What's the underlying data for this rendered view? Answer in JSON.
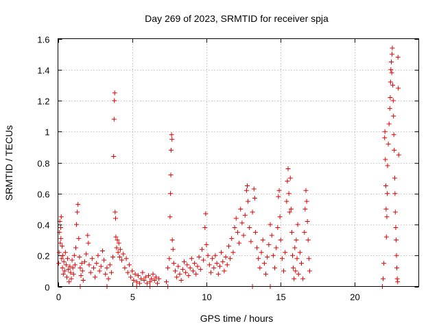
{
  "chart_data": {
    "type": "scatter",
    "title": "Day 269 of 2023, SRMTID for receiver spja",
    "xlabel": "GPS time / hours",
    "ylabel": "SRMTID / TECUs",
    "xlim": [
      0,
      24.3
    ],
    "ylim": [
      0,
      1.6
    ],
    "xticks": [
      0,
      5,
      10,
      15,
      20
    ],
    "yticks": [
      0,
      0.2,
      0.4,
      0.6,
      0.8,
      1.0,
      1.2,
      1.4,
      1.6
    ],
    "xtick_labels": [
      "0",
      "5",
      "10",
      "15",
      "20"
    ],
    "ytick_labels": [
      "0",
      "0.2",
      "0.4",
      "0.6",
      "0.8",
      "1",
      "1.2",
      "1.4",
      "1.6"
    ],
    "grid": true,
    "marker": "+",
    "color": "#e00000",
    "series": [
      {
        "name": "SRMTID",
        "points": [
          [
            0.05,
            0.15
          ],
          [
            0.08,
            0.22
          ],
          [
            0.1,
            0.35
          ],
          [
            0.12,
            0.42
          ],
          [
            0.15,
            0.28
          ],
          [
            0.18,
            0.38
          ],
          [
            0.2,
            0.31
          ],
          [
            0.22,
            0.45
          ],
          [
            0.25,
            0.18
          ],
          [
            0.28,
            0.26
          ],
          [
            0.3,
            0.12
          ],
          [
            0.33,
            0.2
          ],
          [
            0.36,
            0.08
          ],
          [
            0.4,
            0.16
          ],
          [
            0.45,
            0.1
          ],
          [
            0.5,
            0.22
          ],
          [
            0.55,
            0.14
          ],
          [
            0.6,
            0.06
          ],
          [
            0.65,
            0.18
          ],
          [
            0.7,
            0.11
          ],
          [
            0.75,
            0.03
          ],
          [
            0.8,
            0.13
          ],
          [
            0.85,
            0.09
          ],
          [
            0.9,
            0.05
          ],
          [
            0.95,
            0.17
          ],
          [
            1.0,
            0.12
          ],
          [
            1.05,
            0.08
          ],
          [
            1.1,
            0.2
          ],
          [
            1.15,
            0.14
          ],
          [
            1.2,
            0.25
          ],
          [
            1.25,
            0.4
          ],
          [
            1.3,
            0.48
          ],
          [
            1.35,
            0.53
          ],
          [
            1.4,
            0.31
          ],
          [
            1.45,
            0.19
          ],
          [
            1.5,
            0.12
          ],
          [
            1.55,
            0.07
          ],
          [
            1.6,
            0.15
          ],
          [
            1.65,
            0.1
          ],
          [
            1.7,
            0.04
          ],
          [
            1.8,
            0.16
          ],
          [
            1.9,
            0.21
          ],
          [
            2.0,
            0.33
          ],
          [
            2.05,
            0.28
          ],
          [
            2.1,
            0.14
          ],
          [
            2.2,
            0.09
          ],
          [
            2.3,
            0.18
          ],
          [
            2.4,
            0.12
          ],
          [
            2.5,
            0.06
          ],
          [
            2.6,
            0.15
          ],
          [
            2.7,
            0.2
          ],
          [
            2.8,
            0.1
          ],
          [
            2.9,
            0.13
          ],
          [
            3.0,
            0.23
          ],
          [
            3.1,
            0.17
          ],
          [
            3.2,
            0.08
          ],
          [
            3.3,
            0.12
          ],
          [
            3.4,
            0.05
          ],
          [
            3.5,
            0.14
          ],
          [
            3.6,
            0.09
          ],
          [
            3.7,
            0.19
          ],
          [
            3.75,
            0.84
          ],
          [
            3.78,
            1.08
          ],
          [
            3.8,
            1.2
          ],
          [
            3.82,
            1.25
          ],
          [
            3.85,
            0.48
          ],
          [
            3.88,
            0.44
          ],
          [
            3.9,
            0.32
          ],
          [
            3.95,
            0.25
          ],
          [
            4.0,
            0.3
          ],
          [
            4.05,
            0.22
          ],
          [
            4.1,
            0.28
          ],
          [
            4.15,
            0.19
          ],
          [
            4.2,
            0.24
          ],
          [
            4.3,
            0.17
          ],
          [
            4.4,
            0.21
          ],
          [
            4.5,
            0.12
          ],
          [
            4.6,
            0.18
          ],
          [
            4.7,
            0.09
          ],
          [
            4.8,
            0.14
          ],
          [
            4.9,
            0.06
          ],
          [
            5.0,
            0.1
          ],
          [
            5.1,
            0.04
          ],
          [
            5.2,
            0.08
          ],
          [
            5.3,
            0.03
          ],
          [
            5.4,
            0.07
          ],
          [
            5.5,
            0.02
          ],
          [
            5.6,
            0.05
          ],
          [
            5.7,
            0.09
          ],
          [
            5.8,
            0.04
          ],
          [
            5.9,
            0.06
          ],
          [
            6.0,
            0.02
          ],
          [
            6.1,
            0.07
          ],
          [
            6.2,
            0.03
          ],
          [
            6.3,
            0.05
          ],
          [
            6.4,
            0.08
          ],
          [
            6.5,
            0.04
          ],
          [
            6.6,
            0.06
          ],
          [
            6.7,
            0.02
          ],
          [
            6.8,
            0.05
          ],
          [
            7.3,
            0.03
          ],
          [
            7.4,
            0.12
          ],
          [
            7.5,
            0.18
          ],
          [
            7.55,
            0.45
          ],
          [
            7.58,
            0.6
          ],
          [
            7.6,
            0.72
          ],
          [
            7.62,
            0.88
          ],
          [
            7.65,
            0.98
          ],
          [
            7.68,
            0.95
          ],
          [
            7.7,
            0.3
          ],
          [
            7.75,
            0.24
          ],
          [
            7.8,
            0.15
          ],
          [
            7.9,
            0.1
          ],
          [
            8.0,
            0.06
          ],
          [
            8.1,
            0.13
          ],
          [
            8.2,
            0.08
          ],
          [
            8.3,
            0.04
          ],
          [
            8.4,
            0.11
          ],
          [
            8.5,
            0.16
          ],
          [
            8.6,
            0.09
          ],
          [
            8.7,
            0.14
          ],
          [
            8.8,
            0.07
          ],
          [
            8.9,
            0.12
          ],
          [
            9.0,
            0.18
          ],
          [
            9.1,
            0.1
          ],
          [
            9.2,
            0.15
          ],
          [
            9.3,
            0.08
          ],
          [
            9.4,
            0.13
          ],
          [
            9.5,
            0.19
          ],
          [
            9.6,
            0.11
          ],
          [
            9.7,
            0.24
          ],
          [
            9.8,
            0.17
          ],
          [
            9.9,
            0.38
          ],
          [
            9.95,
            0.47
          ],
          [
            10.0,
            0.27
          ],
          [
            10.1,
            0.2
          ],
          [
            10.2,
            0.14
          ],
          [
            10.3,
            0.09
          ],
          [
            10.4,
            0.18
          ],
          [
            10.5,
            0.12
          ],
          [
            10.6,
            0.2
          ],
          [
            10.7,
            0.15
          ],
          [
            10.8,
            0.08
          ],
          [
            10.9,
            0.13
          ],
          [
            11.0,
            0.22
          ],
          [
            11.1,
            0.16
          ],
          [
            11.2,
            0.1
          ],
          [
            11.3,
            0.19
          ],
          [
            11.4,
            0.14
          ],
          [
            11.5,
            0.26
          ],
          [
            11.6,
            0.18
          ],
          [
            11.7,
            0.31
          ],
          [
            11.8,
            0.22
          ],
          [
            11.9,
            0.38
          ],
          [
            12.0,
            0.44
          ],
          [
            12.1,
            0.35
          ],
          [
            12.2,
            0.28
          ],
          [
            12.3,
            0.5
          ],
          [
            12.4,
            0.41
          ],
          [
            12.5,
            0.33
          ],
          [
            12.6,
            0.46
          ],
          [
            12.7,
            0.62
          ],
          [
            12.75,
            0.65
          ],
          [
            12.8,
            0.55
          ],
          [
            12.9,
            0.38
          ],
          [
            13.0,
            0.29
          ],
          [
            13.1,
            0.48
          ],
          [
            13.2,
            0.63
          ],
          [
            13.25,
            0.57
          ],
          [
            13.3,
            0.35
          ],
          [
            13.4,
            0.25
          ],
          [
            13.5,
            0.18
          ],
          [
            13.6,
            0.12
          ],
          [
            13.7,
            0.22
          ],
          [
            13.8,
            0.3
          ],
          [
            13.9,
            0.15
          ],
          [
            14.0,
            0.08
          ],
          [
            14.1,
            0.19
          ],
          [
            14.2,
            0.27
          ],
          [
            14.3,
            0.4
          ],
          [
            14.4,
            0.33
          ],
          [
            14.5,
            0.2
          ],
          [
            14.6,
            0.12
          ],
          [
            14.7,
            0.25
          ],
          [
            14.8,
            0.38
          ],
          [
            14.85,
            0.58
          ],
          [
            14.9,
            0.62
          ],
          [
            14.95,
            0.45
          ],
          [
            15.0,
            0.3
          ],
          [
            15.1,
            0.18
          ],
          [
            15.2,
            0.1
          ],
          [
            15.3,
            0.22
          ],
          [
            15.4,
            0.55
          ],
          [
            15.45,
            0.68
          ],
          [
            15.5,
            0.76
          ],
          [
            15.55,
            0.6
          ],
          [
            15.6,
            0.48
          ],
          [
            15.65,
            0.7
          ],
          [
            15.7,
            0.5
          ],
          [
            15.75,
            0.35
          ],
          [
            15.8,
            0.2
          ],
          [
            15.85,
            0.12
          ],
          [
            15.9,
            0.05
          ],
          [
            15.95,
            0.25
          ],
          [
            16.0,
            0.1
          ],
          [
            16.05,
            0.3
          ],
          [
            16.1,
            0.18
          ],
          [
            16.15,
            0.4
          ],
          [
            16.2,
            0.08
          ],
          [
            16.3,
            0.22
          ],
          [
            16.4,
            0.15
          ],
          [
            16.5,
            0.05
          ],
          [
            16.6,
            0.35
          ],
          [
            16.65,
            0.5
          ],
          [
            16.7,
            0.62
          ],
          [
            16.75,
            0.55
          ],
          [
            16.8,
            0.42
          ],
          [
            16.85,
            0.3
          ],
          [
            16.9,
            0.18
          ],
          [
            16.95,
            0.1
          ],
          [
            1.5,
            0.0
          ],
          [
            3.3,
            0.0
          ],
          [
            5.3,
            0.0
          ],
          [
            6.2,
            0.0
          ],
          [
            7.4,
            0.0
          ],
          [
            13.1,
            0.0
          ],
          [
            14.3,
            0.0
          ],
          [
            21.85,
            0.0
          ],
          [
            21.9,
            0.05
          ],
          [
            21.95,
            0.15
          ],
          [
            22.0,
            0.96
          ],
          [
            22.02,
            1.0
          ],
          [
            22.05,
            0.82
          ],
          [
            22.08,
            0.65
          ],
          [
            22.1,
            0.5
          ],
          [
            22.12,
            0.32
          ],
          [
            22.15,
            0.45
          ],
          [
            22.18,
            0.6
          ],
          [
            22.2,
            0.78
          ],
          [
            22.25,
            0.92
          ],
          [
            22.3,
            1.05
          ],
          [
            22.35,
            1.15
          ],
          [
            22.38,
            1.22
          ],
          [
            22.4,
            1.32
          ],
          [
            22.42,
            1.4
          ],
          [
            22.45,
            1.45
          ],
          [
            22.48,
            1.38
          ],
          [
            22.5,
            1.5
          ],
          [
            22.52,
            1.54
          ],
          [
            22.55,
            1.3
          ],
          [
            22.58,
            1.2
          ],
          [
            22.6,
            1.1
          ],
          [
            22.62,
            0.98
          ],
          [
            22.65,
            0.88
          ],
          [
            22.68,
            0.7
          ],
          [
            22.7,
            0.6
          ],
          [
            22.72,
            0.48
          ],
          [
            22.75,
            0.38
          ],
          [
            22.78,
            0.3
          ],
          [
            22.8,
            0.2
          ],
          [
            22.82,
            0.12
          ],
          [
            22.85,
            0.05
          ],
          [
            22.88,
            0.03
          ],
          [
            22.9,
            1.48
          ],
          [
            22.92,
            1.28
          ],
          [
            22.95,
            0.85
          ]
        ]
      }
    ]
  }
}
